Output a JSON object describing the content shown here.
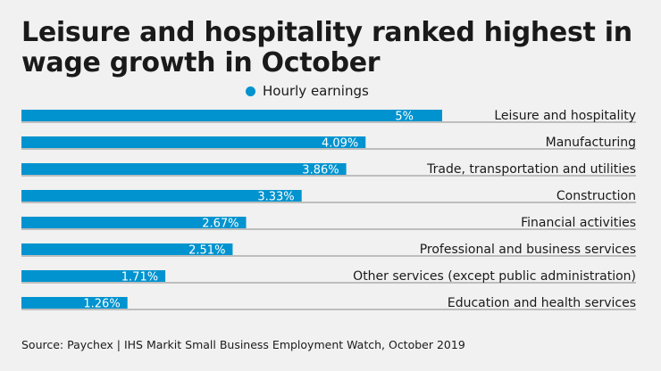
{
  "title": "Leisure and hospitality ranked highest in wage growth in October",
  "source": "Source: Paychex | IHS Markit Small Business Employment Watch, October 2019",
  "chart_data": {
    "type": "bar",
    "orientation": "horizontal",
    "title": "Leisure and hospitality ranked highest in wage growth in October",
    "legend": {
      "position": "top-center",
      "entries": [
        "Hourly earnings"
      ]
    },
    "categories": [
      "Leisure and hospitality",
      "Manufacturing",
      "Trade, transportation and utilities",
      "Construction",
      "Financial activities",
      "Professional and business services",
      "Other services (except public administration)",
      "Education and health services"
    ],
    "series": [
      {
        "name": "Hourly earnings",
        "color": "#0093cf",
        "values": [
          5,
          4.09,
          3.86,
          3.33,
          2.67,
          2.51,
          1.71,
          1.26
        ]
      }
    ],
    "data_labels": [
      "5%",
      "4.09%",
      "3.86%",
      "3.33%",
      "2.67%",
      "2.51%",
      "1.71%",
      "1.26%"
    ],
    "xlim": [
      0,
      5
    ],
    "grid": false
  }
}
